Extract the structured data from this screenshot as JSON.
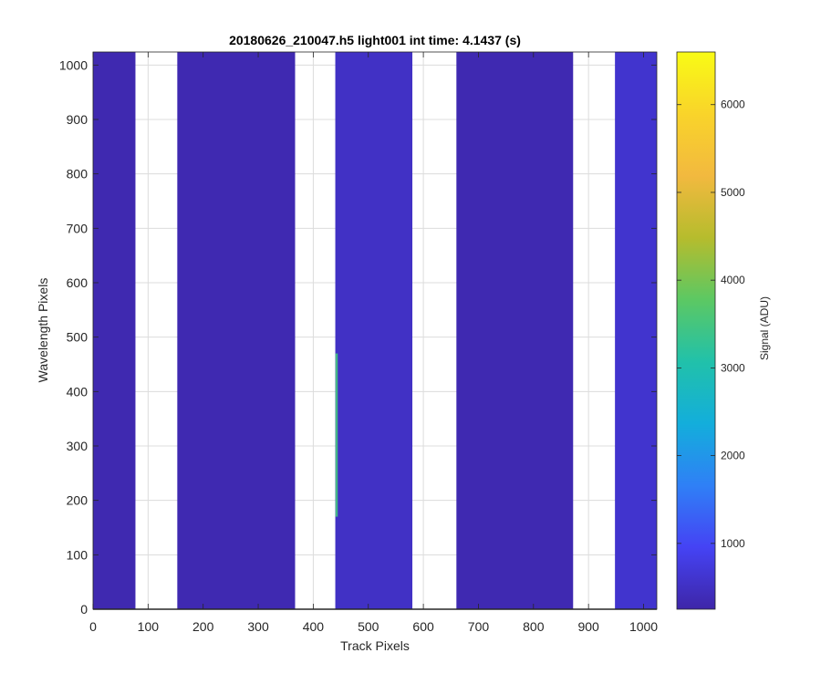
{
  "chart_data": {
    "type": "heatmap",
    "title": "20180626_210047.h5  light001   int time: 4.1437 (s)",
    "xlabel": "Track Pixels",
    "ylabel": "Wavelength Pixels",
    "xlim": [
      0,
      1024
    ],
    "ylim": [
      0,
      1024
    ],
    "x_ticks": [
      0,
      100,
      200,
      300,
      400,
      500,
      600,
      700,
      800,
      900,
      1000
    ],
    "y_ticks": [
      0,
      100,
      200,
      300,
      400,
      500,
      600,
      700,
      800,
      900,
      1000
    ],
    "grid": true,
    "tracks": [
      {
        "x_start": 0,
        "x_end": 77,
        "signal": 320
      },
      {
        "x_start": 153,
        "x_end": 367,
        "signal": 330
      },
      {
        "x_start": 440,
        "x_end": 580,
        "signal": 520
      },
      {
        "x_start": 660,
        "x_end": 872,
        "signal": 330
      },
      {
        "x_start": 948,
        "x_end": 1024,
        "signal": 600
      }
    ],
    "hotspot": {
      "x": 442,
      "y_range": [
        170,
        470
      ],
      "signal": 3500
    },
    "colorbar": {
      "label": "Signal (ADU)",
      "range": [
        250,
        6600
      ],
      "ticks": [
        1000,
        2000,
        3000,
        4000,
        5000,
        6000
      ],
      "colormap": "parula",
      "colormap_colors": [
        "#3e26a8",
        "#4543f4",
        "#2f80f6",
        "#13aedb",
        "#21c1aa",
        "#5cc863",
        "#b6bc2d",
        "#f2b93f",
        "#f9d42a",
        "#f9fb15"
      ]
    }
  }
}
